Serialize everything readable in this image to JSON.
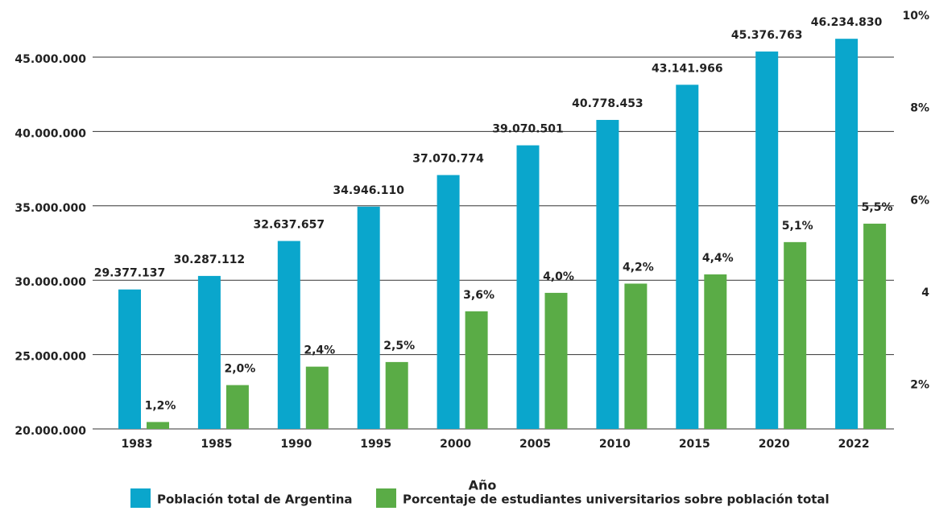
{
  "chart_data": {
    "type": "bar",
    "x_label": "Año",
    "categories": [
      "1983",
      "1985",
      "1990",
      "1995",
      "2000",
      "2005",
      "2010",
      "2015",
      "2020",
      "2022"
    ],
    "series": [
      {
        "name": "Población total de Argentina",
        "color": "#0aa6cc",
        "values": [
          29377137,
          30287112,
          32637657,
          34946110,
          37070774,
          39070501,
          40778453,
          43141966,
          45376763,
          46234830
        ],
        "value_labels": [
          "29.377.137",
          "30.287.112",
          "32.637.657",
          "34.946.110",
          "37.070.774",
          "39.070.501",
          "40.778.453",
          "43.141.966",
          "45.376.763",
          "46.234.830"
        ]
      },
      {
        "name": "Porcentaje de estudiantes universitarios sobre población total",
        "color": "#5aac46",
        "axis": "y2",
        "values": [
          1.2,
          2.0,
          2.4,
          2.5,
          3.6,
          4.0,
          4.2,
          4.4,
          5.1,
          5.5
        ],
        "value_labels": [
          "1,2%",
          "2,0%",
          "2,4%",
          "2,5%",
          "3,6%",
          "4,0%",
          "4,2%",
          "4,4%",
          "5,1%",
          "5,5%"
        ]
      }
    ],
    "ylim": [
      20000000,
      47760000
    ],
    "yticks": [
      {
        "value": 20000000,
        "label": "20.000.000"
      },
      {
        "value": 25000000,
        "label": "25.000.000"
      },
      {
        "value": 30000000,
        "label": "30.000.000"
      },
      {
        "value": 35000000,
        "label": "35.000.000"
      },
      {
        "value": 40000000,
        "label": "40.000.000"
      },
      {
        "value": 45000000,
        "label": "45.000.000"
      }
    ],
    "y2lim": [
      1.05,
      10
    ],
    "y2ticks": [
      {
        "value": 2,
        "label": "2%"
      },
      4,
      {
        "value": 6,
        "label": "6%"
      },
      {
        "value": 8,
        "label": "8%"
      },
      {
        "value": 10,
        "label": "10%"
      }
    ],
    "grid": true
  }
}
